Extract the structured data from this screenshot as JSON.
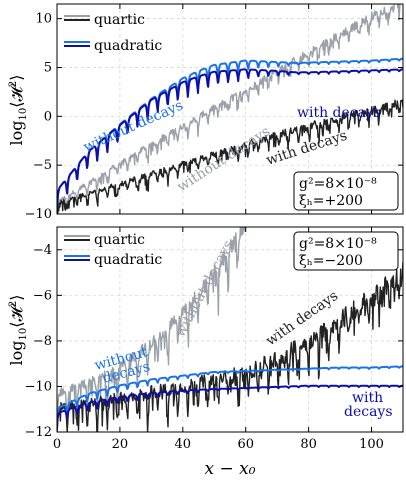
{
  "colors": {
    "quartic_with": "#222222",
    "quartic_without": "#9aa1a8",
    "quadratic_with": "#0d0fa8",
    "quadratic_without": "#1a73e8",
    "grid": "#d0d0d0"
  },
  "chart_data": [
    {
      "type": "line",
      "panel": "top",
      "xlim": [
        0,
        110
      ],
      "ylim": [
        -10,
        11.5
      ],
      "xticks": [
        0,
        20,
        40,
        60,
        80,
        100
      ],
      "yticks": [
        -10,
        -5,
        0,
        5,
        10
      ],
      "ytick_labels": [
        "−10",
        "−5",
        "0",
        "5",
        "10"
      ],
      "ylabel": "log₁₀⟨𝓗²⟩",
      "grid": true,
      "legend": {
        "position": "top-left",
        "entries": [
          "quartic",
          "quadratic"
        ]
      },
      "params": [
        "g²=8×10⁻⁸",
        "ξₕ=+200"
      ],
      "series": [
        {
          "name": "quartic without decays",
          "x": [
            0,
            10,
            20,
            30,
            40,
            50,
            60,
            70,
            80,
            90,
            100,
            110
          ],
          "y": [
            -9.5,
            -7.5,
            -5.5,
            -3.5,
            -1.7,
            0.2,
            2.0,
            4.0,
            5.8,
            7.7,
            9.5,
            11.3
          ]
        },
        {
          "name": "quartic with decays",
          "x": [
            0,
            10,
            20,
            30,
            40,
            50,
            60,
            70,
            80,
            90,
            100,
            110
          ],
          "y": [
            -9.5,
            -8.5,
            -7.5,
            -6.5,
            -5.5,
            -4.5,
            -3.5,
            -2.5,
            -1.6,
            -0.8,
            0.0,
            0.8
          ]
        },
        {
          "name": "quadratic without decays",
          "x": [
            0,
            5,
            10,
            20,
            30,
            40,
            50,
            60,
            70,
            80,
            90,
            100,
            110
          ],
          "y": [
            -8.5,
            -6.5,
            -4.5,
            -1.7,
            0.9,
            3.0,
            4.5,
            5.2,
            5.3,
            5.4,
            5.5,
            5.6,
            5.8
          ]
        },
        {
          "name": "quadratic with decays",
          "x": [
            0,
            5,
            10,
            20,
            30,
            40,
            50,
            60,
            70,
            80,
            90,
            100,
            110
          ],
          "y": [
            -8.5,
            -6.5,
            -4.5,
            -1.8,
            0.8,
            2.6,
            3.8,
            4.3,
            4.4,
            4.4,
            4.5,
            4.6,
            4.7
          ]
        }
      ],
      "annotations": [
        "without decays",
        "with decays",
        "without decays",
        "with decays"
      ]
    },
    {
      "type": "line",
      "panel": "bottom",
      "xlim": [
        0,
        110
      ],
      "ylim": [
        -12,
        -3
      ],
      "xticks": [
        0,
        20,
        40,
        60,
        80,
        100
      ],
      "xtick_labels": [
        "0",
        "20",
        "40",
        "60",
        "80",
        "100"
      ],
      "yticks": [
        -12,
        -10,
        -8,
        -6,
        -4
      ],
      "ytick_labels": [
        "−12",
        "−10",
        "−8",
        "−6",
        "−4"
      ],
      "xlabel": "x − x₀",
      "ylabel": "log₁₀⟨𝓗²⟩",
      "grid": true,
      "legend": {
        "position": "top-left",
        "entries": [
          "quartic",
          "quadratic"
        ]
      },
      "params": [
        "g²=8×10⁻⁸",
        "ξₕ=−200"
      ],
      "series": [
        {
          "name": "quartic without decays",
          "x": [
            0,
            10,
            20,
            30,
            40,
            50,
            60
          ],
          "y": [
            -11.0,
            -10.5,
            -9.8,
            -8.8,
            -7.4,
            -5.7,
            -3.5
          ]
        },
        {
          "name": "quartic with decays",
          "x": [
            0,
            10,
            20,
            30,
            40,
            50,
            60,
            70,
            80,
            90,
            100,
            110
          ],
          "y": [
            -11.5,
            -11.3,
            -11.1,
            -10.8,
            -10.6,
            -10.3,
            -10.0,
            -9.4,
            -8.6,
            -7.7,
            -6.7,
            -5.6
          ]
        },
        {
          "name": "quadratic without decays",
          "x": [
            0,
            10,
            20,
            30,
            40,
            50,
            60,
            70,
            80,
            90,
            100,
            110
          ],
          "y": [
            -11.2,
            -10.5,
            -10.1,
            -9.8,
            -9.6,
            -9.4,
            -9.35,
            -9.3,
            -9.25,
            -9.2,
            -9.2,
            -9.15
          ]
        },
        {
          "name": "quadratic with decays",
          "x": [
            0,
            10,
            20,
            30,
            40,
            50,
            60,
            70,
            80,
            90,
            100,
            110
          ],
          "y": [
            -11.4,
            -10.9,
            -10.6,
            -10.4,
            -10.25,
            -10.15,
            -10.1,
            -10.05,
            -10.0,
            -10.0,
            -10.0,
            -10.0
          ]
        }
      ],
      "annotations": [
        "without decays",
        "with decays",
        "without decays",
        "with decays"
      ]
    }
  ],
  "labels": {
    "ylabel_prefix": "log",
    "ylabel_sub": "10",
    "ylabel_core": "⟨𝓗",
    "ylabel_sup": "2",
    "ylabel_end": "⟩",
    "xlabel": "x − x₀",
    "legend_quartic": "quartic",
    "legend_quadratic": "quadratic",
    "top_params_g": "g²=8×10⁻⁸",
    "top_params_xi": "ξₕ=+200",
    "bot_params_g": "g²=8×10⁻⁸",
    "bot_params_xi": "ξₕ=−200",
    "top_ann_quad_without": "without decays",
    "top_ann_quad_with": "with decays",
    "top_ann_quart_without": "without decays",
    "top_ann_quart_with": "with decays",
    "bot_ann_quart_without": "without decays",
    "bot_ann_quart_with": "with decays",
    "bot_ann_quad_without_1": "without",
    "bot_ann_quad_without_2": "decays",
    "bot_ann_quad_with_1": "with",
    "bot_ann_quad_with_2": "decays"
  }
}
